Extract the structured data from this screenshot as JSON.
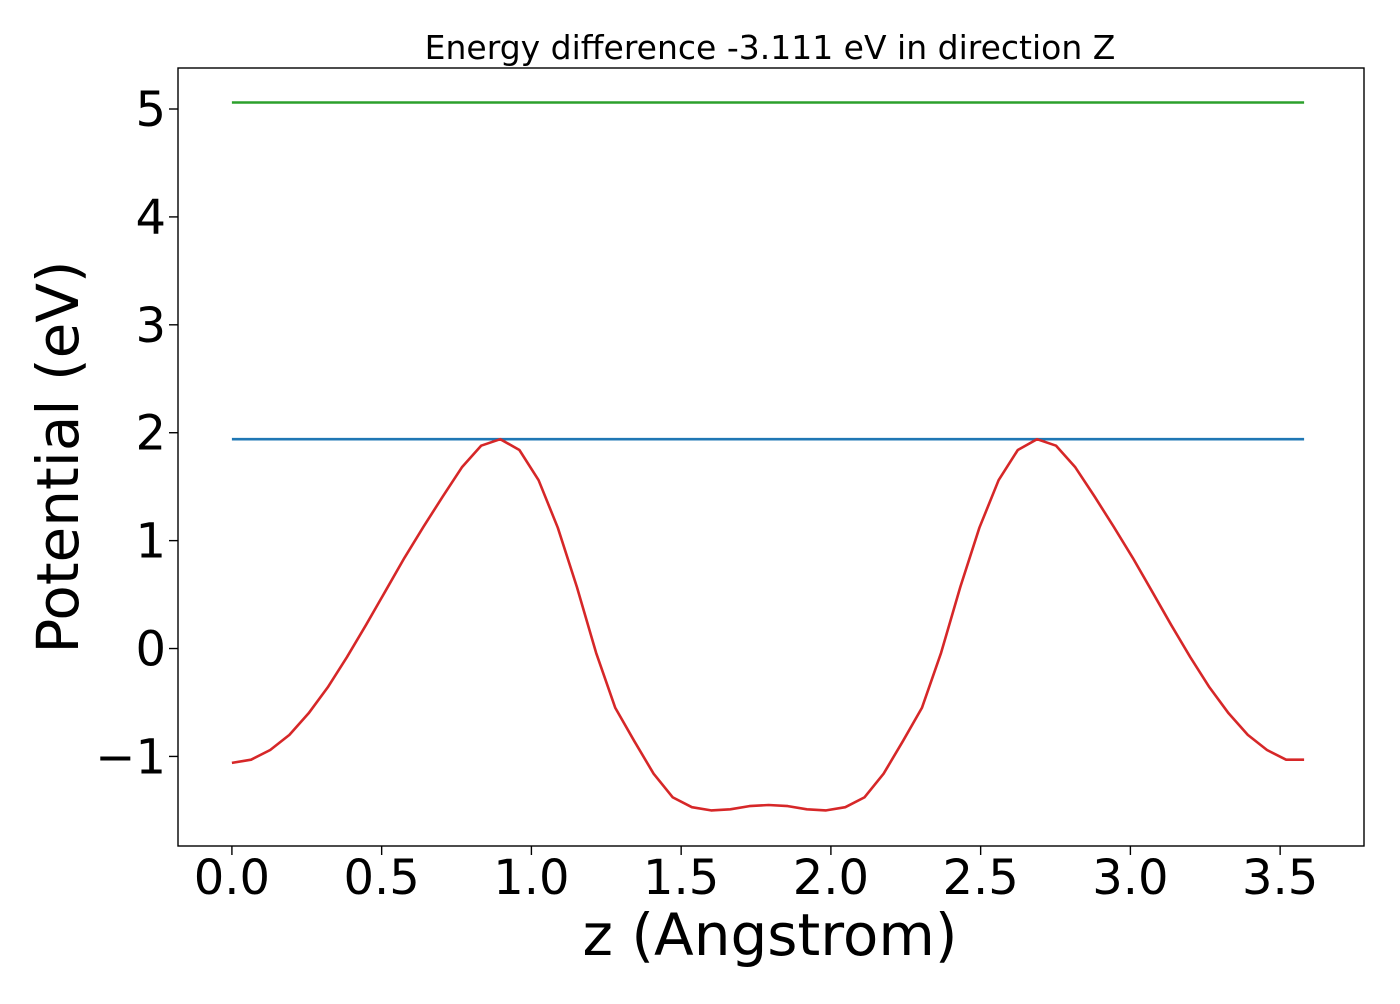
{
  "chart_data": {
    "type": "line",
    "title": "Energy difference -3.111 eV in direction Z",
    "xlabel": "z (Angstrom)",
    "ylabel": "Potential (eV)",
    "xlim": [
      -0.18,
      3.78
    ],
    "ylim": [
      -1.83,
      5.38
    ],
    "xticks": [
      0.0,
      0.5,
      1.0,
      1.5,
      2.0,
      2.5,
      3.0,
      3.5
    ],
    "xtick_labels": [
      "0.0",
      "0.5",
      "1.0",
      "1.5",
      "2.0",
      "2.5",
      "3.0",
      "3.5"
    ],
    "yticks": [
      -1,
      0,
      1,
      2,
      3,
      4,
      5
    ],
    "ytick_labels": [
      "−1",
      "0",
      "1",
      "2",
      "3",
      "4",
      "5"
    ],
    "grid": false,
    "legend": "none",
    "series": [
      {
        "color": "#2ca02c",
        "x": [
          0.0,
          3.58
        ],
        "y": [
          5.06,
          5.06
        ]
      },
      {
        "color": "#1f77b4",
        "x": [
          0.0,
          3.58
        ],
        "y": [
          1.94,
          1.94
        ]
      },
      {
        "color": "#d62728",
        "x": [
          0.0,
          0.064,
          0.128,
          0.192,
          0.256,
          0.32,
          0.384,
          0.448,
          0.512,
          0.576,
          0.64,
          0.704,
          0.768,
          0.832,
          0.896,
          0.96,
          1.024,
          1.088,
          1.152,
          1.216,
          1.28,
          1.344,
          1.408,
          1.472,
          1.536,
          1.6,
          1.664,
          1.728,
          1.792,
          1.856,
          1.92,
          1.984,
          2.048,
          2.112,
          2.176,
          2.24,
          2.304,
          2.368,
          2.432,
          2.496,
          2.56,
          2.624,
          2.688,
          2.752,
          2.816,
          2.88,
          2.944,
          3.008,
          3.072,
          3.136,
          3.2,
          3.264,
          3.328,
          3.392,
          3.456,
          3.52,
          3.58
        ],
        "y": [
          -1.06,
          -1.03,
          -0.94,
          -0.8,
          -0.6,
          -0.36,
          -0.08,
          0.22,
          0.53,
          0.84,
          1.13,
          1.41,
          1.68,
          1.88,
          1.94,
          1.84,
          1.56,
          1.12,
          0.57,
          -0.04,
          -0.55,
          -0.86,
          -1.16,
          -1.38,
          -1.47,
          -1.5,
          -1.49,
          -1.46,
          -1.45,
          -1.46,
          -1.49,
          -1.5,
          -1.47,
          -1.38,
          -1.16,
          -0.86,
          -0.55,
          -0.04,
          0.57,
          1.12,
          1.56,
          1.84,
          1.94,
          1.88,
          1.68,
          1.41,
          1.13,
          0.84,
          0.53,
          0.22,
          -0.08,
          -0.36,
          -0.6,
          -0.8,
          -0.94,
          -1.03,
          -1.03
        ]
      }
    ]
  }
}
